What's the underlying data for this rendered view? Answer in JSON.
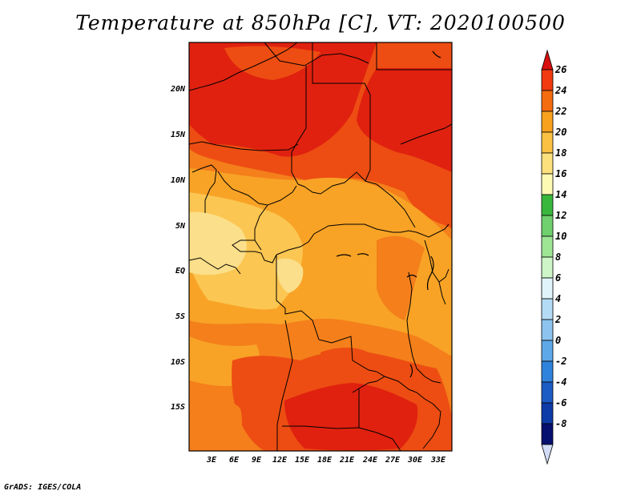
{
  "title": "Temperature at 850hPa [C], VT: 2020100500",
  "credit": "GrADS: IGES/COLA",
  "y_axis_labels": [
    "20N",
    "15N",
    "10N",
    "5N",
    "EQ",
    "5S",
    "10S",
    "15S"
  ],
  "x_axis_labels": [
    "3E",
    "6E",
    "9E",
    "12E",
    "15E",
    "18E",
    "21E",
    "24E",
    "27E",
    "30E",
    "33E"
  ],
  "colorbar": {
    "labels": [
      "26",
      "24",
      "22",
      "20",
      "18",
      "16",
      "14",
      "12",
      "10",
      "8",
      "6",
      "4",
      "2",
      "0",
      "-2",
      "-4",
      "-6",
      "-8"
    ],
    "colors": [
      "#d7100f",
      "#f03a0f",
      "#f36c10",
      "#f7a11f",
      "#fbc142",
      "#fbe07d",
      "#fdfab4",
      "#39b73c",
      "#6fd06d",
      "#9ee594",
      "#cdf5c7",
      "#e0f4fb",
      "#b4dbf5",
      "#8cc4ef",
      "#5ea8e7",
      "#2f83dc",
      "#1b5cc4",
      "#0d3ba8",
      "#06106e"
    ],
    "under_color": "#d2dcf8"
  },
  "map_colors": {
    "c24": "#e0210f",
    "c22": "#ed4d12",
    "c20": "#f47f1b",
    "c18": "#f8a326",
    "c16": "#fbc651",
    "c14": "#fbdf8a",
    "border": "#000000"
  }
}
